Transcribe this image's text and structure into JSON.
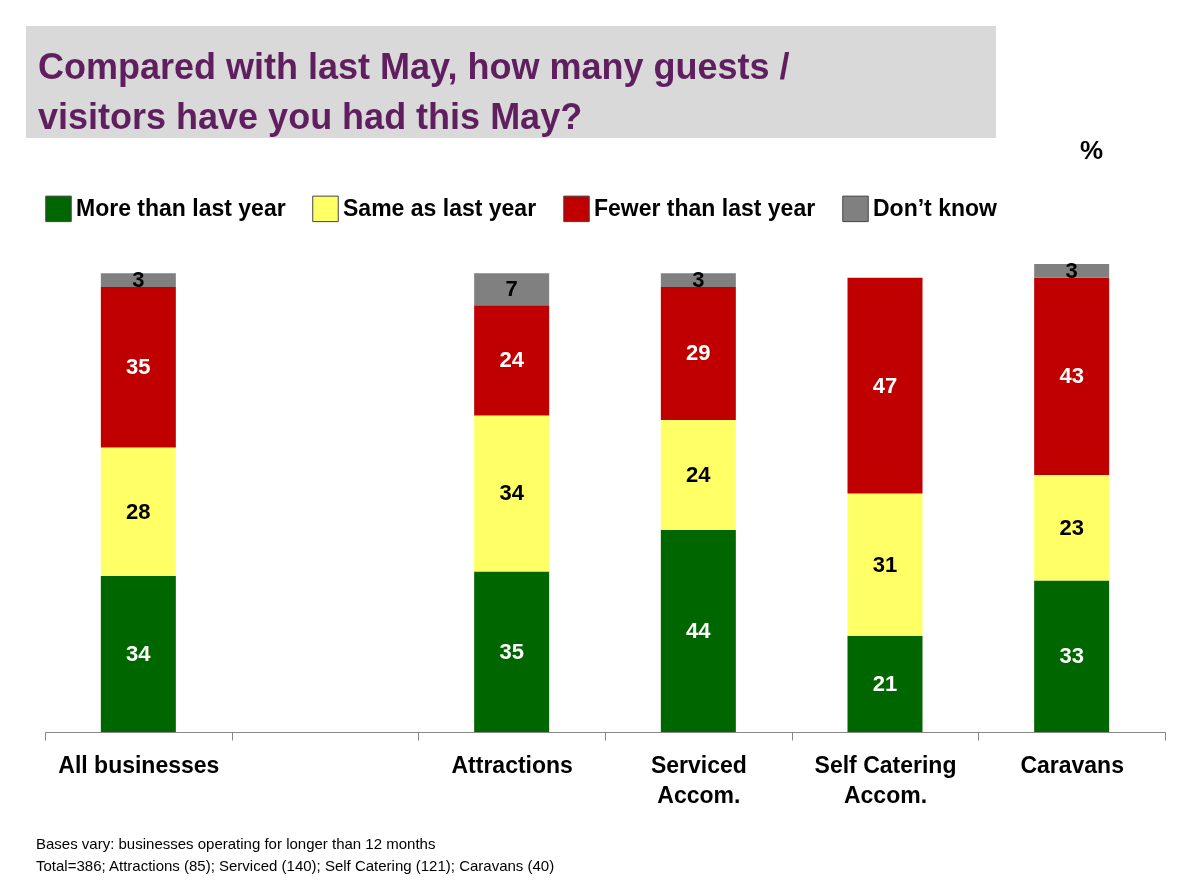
{
  "chart_data": {
    "type": "bar",
    "stacked": true,
    "data_labels": true,
    "legend": "top",
    "title": "Compared with last May, how many guests / visitors have you had this May?",
    "ylabel": "%",
    "categories": [
      "All businesses",
      null,
      "Attractions",
      "Serviced\nAccom.",
      "Self Catering\nAccom.",
      "Caravans"
    ],
    "ylim": [
      0,
      102
    ],
    "series": [
      {
        "name": "More than last year",
        "color": "#006600",
        "values": [
          34,
          null,
          35,
          44,
          21,
          33
        ]
      },
      {
        "name": "Same as last year",
        "color": "#ffff66",
        "values": [
          28,
          null,
          34,
          24,
          31,
          23
        ]
      },
      {
        "name": "Fewer than last year",
        "color": "#c00000",
        "values": [
          35,
          null,
          24,
          29,
          47,
          43
        ]
      },
      {
        "name": "Don’t know",
        "color": "#808080",
        "values": [
          3,
          null,
          7,
          3,
          null,
          3
        ]
      }
    ],
    "annotations": [
      "Bases vary: businesses operating for longer than 12 months",
      "Total=386; Attractions (85); Serviced (140); Self Catering (121); Caravans (40)"
    ]
  }
}
